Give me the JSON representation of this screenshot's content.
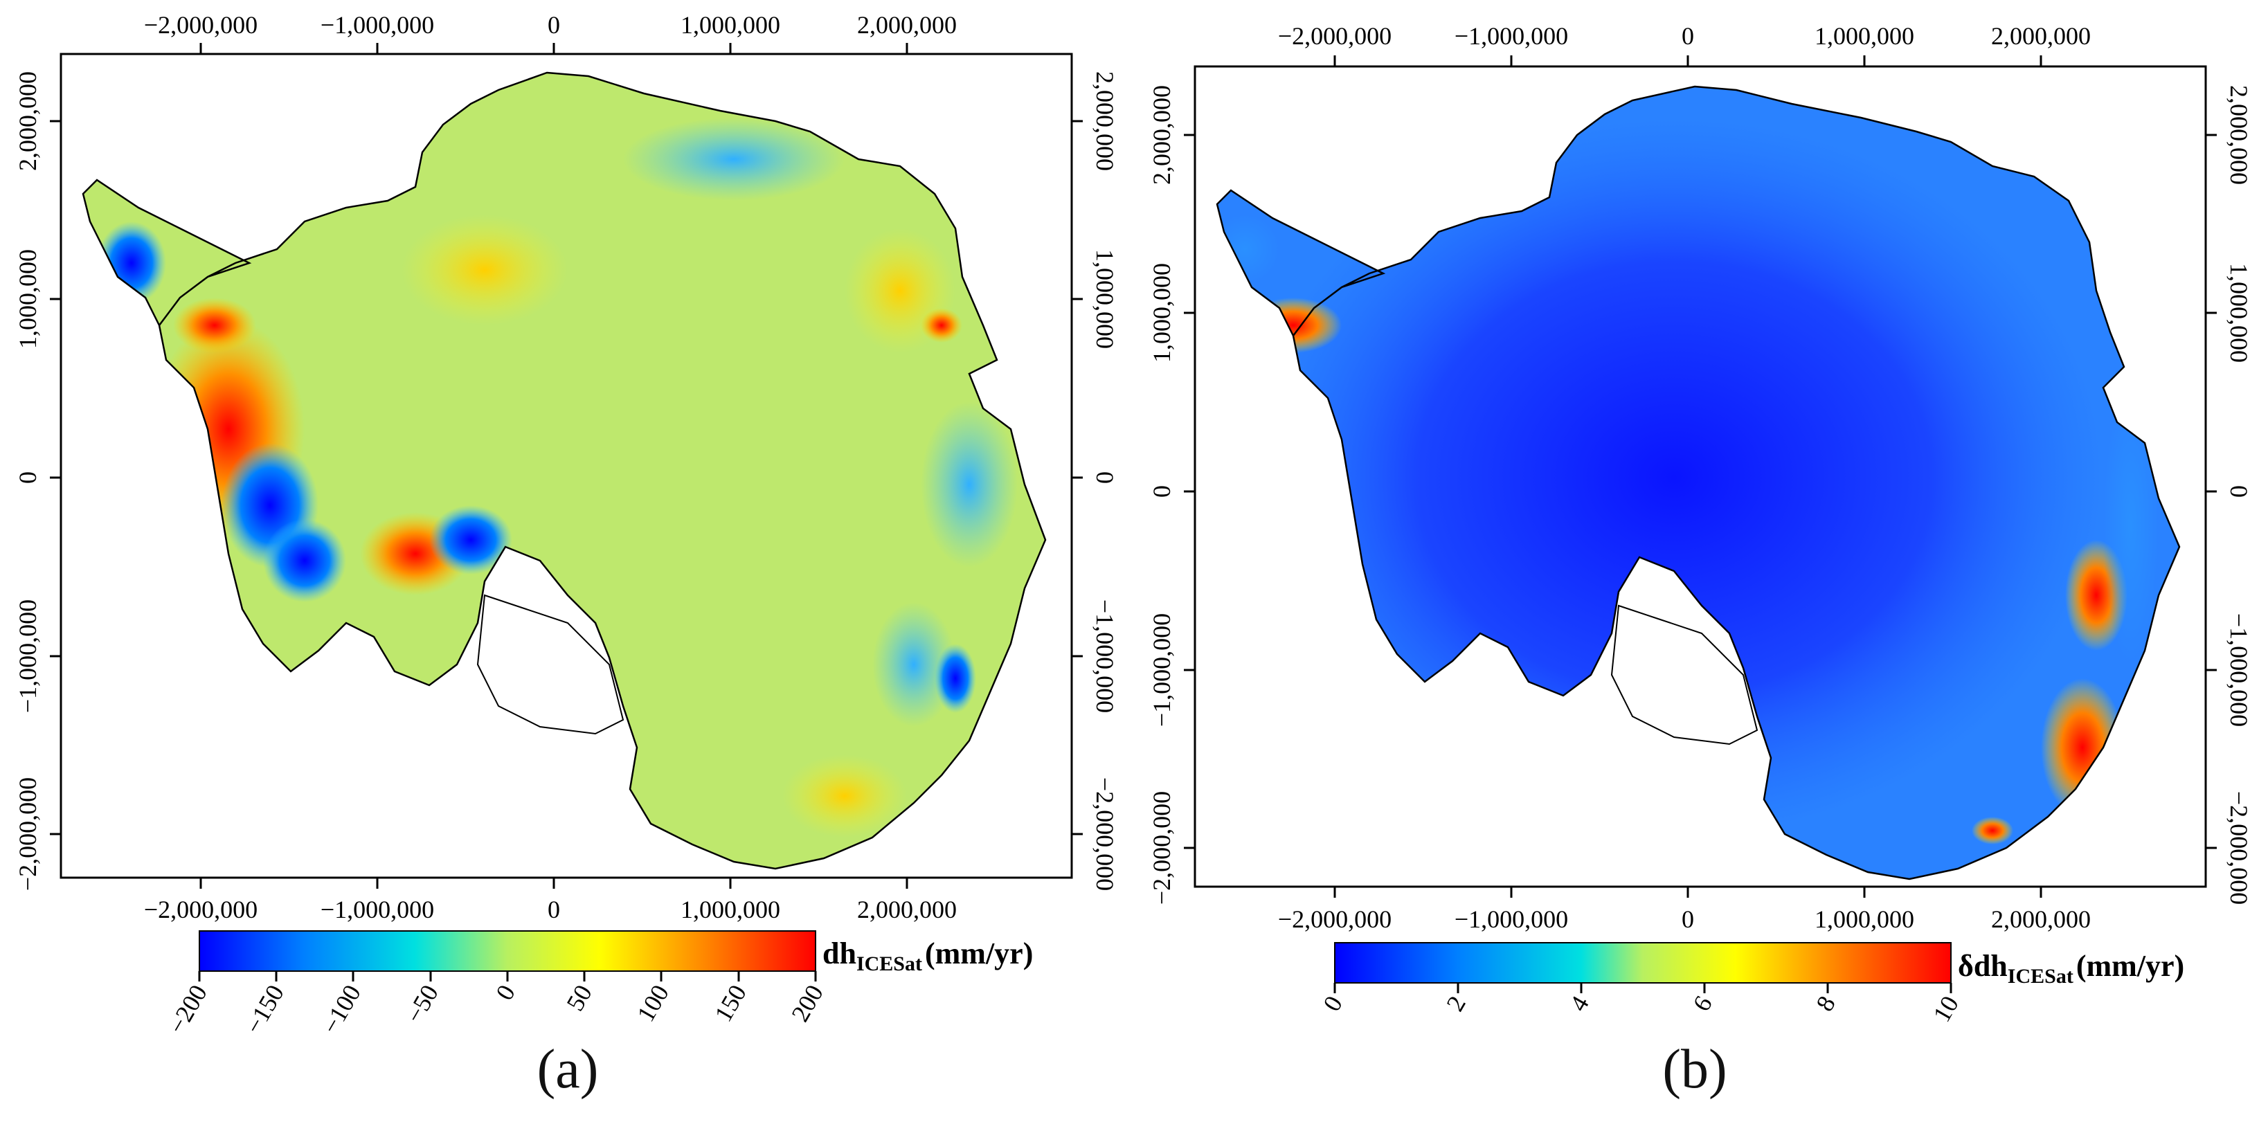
{
  "panels": [
    {
      "id": "a",
      "caption": "(a)",
      "top_ticks": [
        "−2,000,000",
        "−1,000,000",
        "0",
        "1,000,000",
        "2,000,000"
      ],
      "bottom_ticks": [
        "−2,000,000",
        "−1,000,000",
        "0",
        "1,000,000",
        "2,000,000"
      ],
      "left_ticks": [
        "2,000,000",
        "1,000,000",
        "0",
        "−1,000,000",
        "−2,000,000"
      ],
      "right_ticks": [
        "2,000,000",
        "1,000,000",
        "0",
        "−1,000,000",
        "−2,000,000"
      ],
      "colorbar": {
        "label_main": "dh",
        "label_sub": "ICESat",
        "label_unit": "(mm/yr)",
        "ticks": [
          "−200",
          "−150",
          "−100",
          "−50",
          "0",
          "50",
          "100",
          "150",
          "200"
        ],
        "range": [
          -200,
          200
        ]
      }
    },
    {
      "id": "b",
      "caption": "(b)",
      "top_ticks": [
        "−2,000,000",
        "−1,000,000",
        "0",
        "1,000,000",
        "2,000,000"
      ],
      "bottom_ticks": [
        "−2,000,000",
        "−1,000,000",
        "0",
        "1,000,000",
        "2,000,000"
      ],
      "left_ticks": [
        "2,000,000",
        "1,000,000",
        "0",
        "−1,000,000",
        "−2,000,000"
      ],
      "right_ticks": [
        "2,000,000",
        "1,000,000",
        "0",
        "−1,000,000",
        "−2,000,000"
      ],
      "colorbar": {
        "label_main": "δdh",
        "label_sub": "ICESat",
        "label_unit": "(mm/yr)",
        "ticks": [
          "0",
          "2",
          "4",
          "6",
          "8",
          "10"
        ],
        "range": [
          0,
          10
        ]
      }
    }
  ],
  "colors": {
    "jet": [
      "#0000ff",
      "#0080ff",
      "#00e0e0",
      "#b8f060",
      "#ffff00",
      "#ff8000",
      "#ff0000"
    ],
    "land_a": "#b8e673",
    "land_b": "#1f5aff",
    "coast": "#000000"
  }
}
